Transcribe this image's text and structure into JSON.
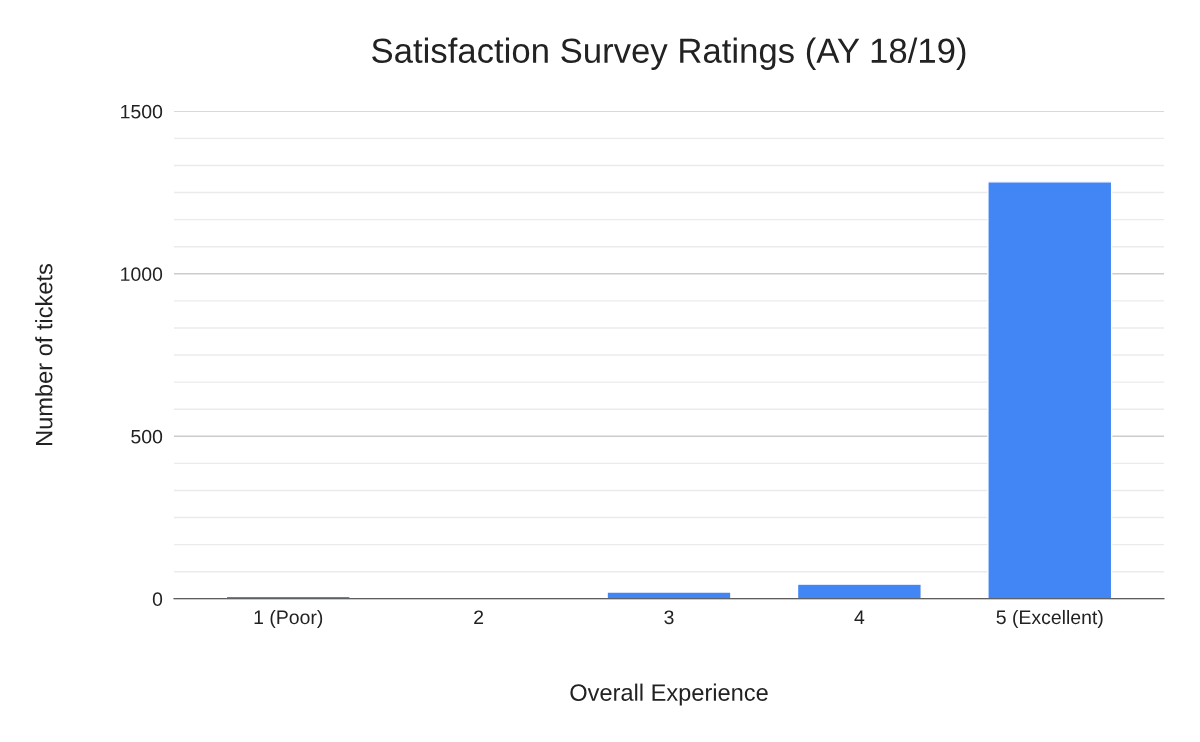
{
  "chart_data": {
    "type": "bar",
    "title": "Satisfaction Survey Ratings (AY 18/19)",
    "xlabel": "Overall Experience",
    "ylabel": "Number of tickets",
    "categories": [
      "1 (Poor)",
      "2",
      "3",
      "4",
      "5 (Excellent)"
    ],
    "values": [
      8,
      null,
      21,
      45,
      1283
    ],
    "color": "#4285f4",
    "ylim": [
      0,
      1500
    ],
    "yticks": [
      0,
      500,
      1000,
      1500
    ],
    "grid": "y"
  }
}
